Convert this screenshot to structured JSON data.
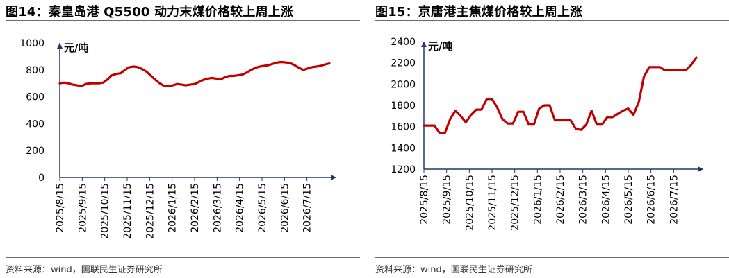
{
  "source_text": "资料来源：wind，国联民生证券研究所",
  "chart_data": [
    {
      "type": "line",
      "title": "图14：秦皇岛港 Q5500 动力末煤价格较上周上涨",
      "ylabel": "元/吨",
      "xlabel": "",
      "ylim": [
        0,
        1000
      ],
      "yticks": [
        0,
        200,
        400,
        600,
        800,
        1000
      ],
      "xtick_labels": [
        "2025/8/15",
        "2025/9/15",
        "2025/10/15",
        "2025/11/15",
        "2025/12/15",
        "2026/1/15",
        "2026/2/15",
        "2026/3/15",
        "2026/4/15",
        "2026/5/15",
        "2026/6/15",
        "2026/7/15"
      ],
      "grid": false,
      "line_color": "#c00000",
      "axis_color": "#1f3864",
      "series": [
        {
          "values": [
            700,
            705,
            700,
            690,
            685,
            680,
            695,
            700,
            700,
            700,
            705,
            730,
            760,
            770,
            775,
            800,
            820,
            825,
            820,
            805,
            785,
            755,
            725,
            700,
            680,
            680,
            685,
            695,
            690,
            685,
            690,
            695,
            710,
            725,
            735,
            740,
            735,
            730,
            745,
            755,
            755,
            760,
            765,
            780,
            800,
            815,
            825,
            830,
            835,
            845,
            855,
            858,
            855,
            850,
            835,
            815,
            800,
            810,
            820,
            825,
            830,
            840,
            848
          ]
        }
      ]
    },
    {
      "type": "line",
      "title": "图15：京唐港主焦煤价格较上周上涨",
      "ylabel": "元/吨",
      "xlabel": "",
      "ylim": [
        1200,
        2400
      ],
      "yticks": [
        1200,
        1400,
        1600,
        1800,
        2000,
        2200,
        2400
      ],
      "xtick_labels": [
        "2025/8/15",
        "2025/9/15",
        "2025/10/15",
        "2025/11/15",
        "2025/12/15",
        "2026/1/15",
        "2026/2/15",
        "2026/3/15",
        "2026/4/15",
        "2026/5/15",
        "2026/6/15",
        "2026/7/15"
      ],
      "grid": false,
      "line_color": "#c00000",
      "axis_color": "#1f3864",
      "series": [
        {
          "values": [
            1610,
            1610,
            1610,
            1540,
            1540,
            1670,
            1750,
            1700,
            1640,
            1710,
            1760,
            1760,
            1860,
            1860,
            1780,
            1670,
            1630,
            1630,
            1740,
            1740,
            1620,
            1620,
            1770,
            1800,
            1800,
            1660,
            1660,
            1660,
            1660,
            1580,
            1570,
            1620,
            1750,
            1620,
            1620,
            1690,
            1690,
            1720,
            1750,
            1770,
            1710,
            1830,
            2070,
            2160,
            2160,
            2160,
            2130,
            2130,
            2130,
            2130,
            2130,
            2180,
            2250
          ]
        }
      ]
    }
  ]
}
